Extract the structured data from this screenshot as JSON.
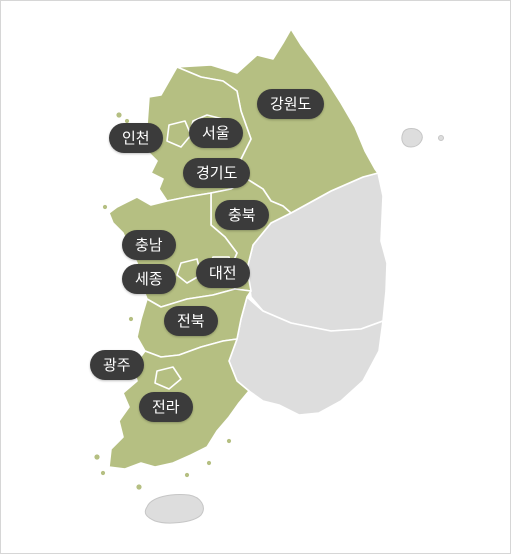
{
  "regions": {
    "gangwon": "강원도",
    "seoul": "서울",
    "incheon": "인천",
    "gyeonggi": "경기도",
    "chungbuk": "충북",
    "chungnam": "충남",
    "sejong": "세종",
    "daejeon": "대전",
    "jeonbuk": "전북",
    "gwangju": "광주",
    "jeolla": "전라"
  },
  "colors": {
    "active_region": "#b5bf82",
    "inactive_region": "#dddddd",
    "label_pill": "#3b3b3b",
    "label_text": "#ffffff"
  }
}
